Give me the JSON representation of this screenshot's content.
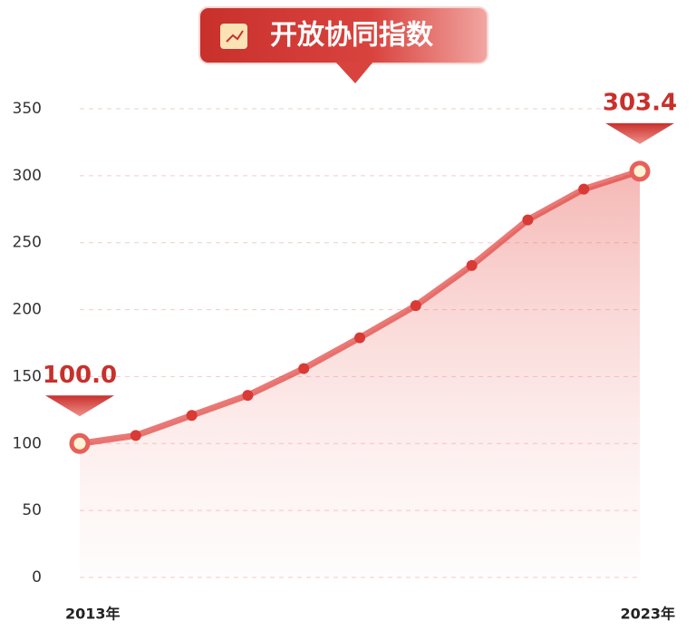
{
  "chart_data": {
    "type": "line",
    "title": "开放协同指数",
    "categories": [
      "2013年",
      null,
      null,
      null,
      null,
      null,
      null,
      null,
      null,
      null,
      "2023年"
    ],
    "values": [
      100.0,
      106,
      121,
      136,
      156,
      179,
      203,
      233,
      267,
      290,
      303.4
    ],
    "value_labels": [
      "100.0",
      null,
      null,
      null,
      null,
      null,
      null,
      null,
      null,
      null,
      "303.4"
    ],
    "color": "#e0403c",
    "ylim": [
      0,
      350
    ],
    "yticks": [
      0,
      50,
      100,
      150,
      200,
      250,
      300,
      350
    ],
    "grid": true
  }
}
